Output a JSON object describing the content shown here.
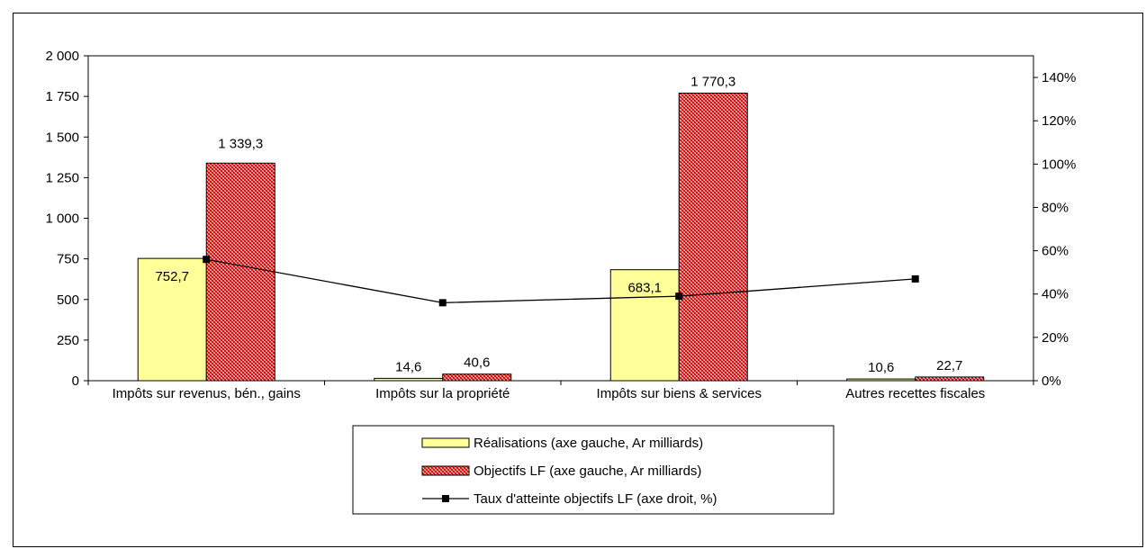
{
  "chart_data": {
    "type": "bar",
    "categories": [
      "Impôts sur revenus, bén., gains",
      "Impôts sur la propriété",
      "Impôts sur biens & services",
      "Autres recettes fiscales"
    ],
    "series": [
      {
        "name": "Réalisations (axe gauche, Ar milliards)",
        "type": "bar",
        "axis": "left",
        "color": "#ffff99",
        "values": [
          752.7,
          14.6,
          683.1,
          10.6
        ],
        "labels": [
          "752,7",
          "14,6",
          "683,1",
          "10,6"
        ]
      },
      {
        "name": "Objectifs LF (axe gauche, Ar milliards)",
        "type": "bar",
        "axis": "left",
        "color": "#ff0000",
        "pattern": "hatched",
        "values": [
          1339.3,
          40.6,
          1770.3,
          22.7
        ],
        "labels": [
          "1 339,3",
          "40,6",
          "1 770,3",
          "22,7"
        ]
      },
      {
        "name": "Taux d'atteinte objectifs LF (axe droit, %)",
        "type": "line",
        "axis": "right",
        "color": "#000000",
        "values": [
          56,
          36,
          39,
          47
        ]
      }
    ],
    "y_left": {
      "ylim": [
        0,
        2000
      ],
      "ticks": [
        0,
        250,
        500,
        750,
        1000,
        1250,
        1500,
        1750,
        2000
      ],
      "tick_labels": [
        "0",
        "250",
        "500",
        "750",
        "1 000",
        "1 250",
        "1 500",
        "1 750",
        "2 000"
      ]
    },
    "y_right": {
      "ylim": [
        0,
        150
      ],
      "ticks": [
        0,
        20,
        40,
        60,
        80,
        100,
        120,
        140
      ],
      "tick_labels": [
        "0%",
        "20%",
        "40%",
        "60%",
        "80%",
        "100%",
        "120%",
        "140%"
      ]
    },
    "grid": false,
    "legend": "bottom"
  }
}
